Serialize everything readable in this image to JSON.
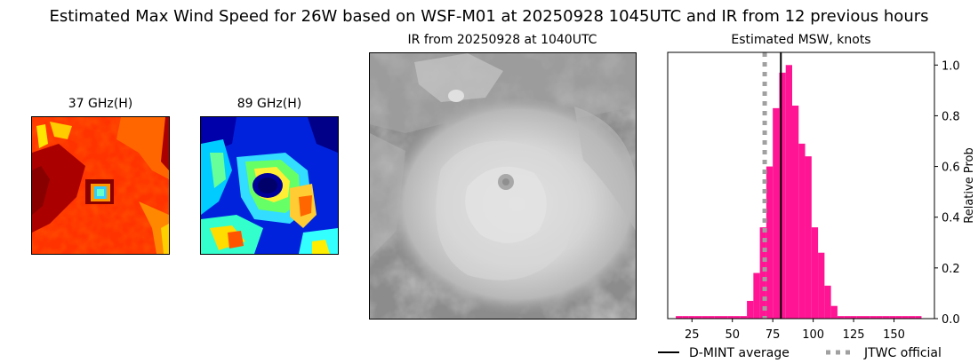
{
  "figure": {
    "title": "Estimated Max Wind Speed for 26W based on WSF-M01 at 20250928 1045UTC and IR from 12 previous hours"
  },
  "panels": {
    "mw37": {
      "title": "37 GHz(H)"
    },
    "mw89": {
      "title": "89 GHz(H)"
    },
    "ir": {
      "title": "IR from 20250928 at 1040UTC"
    }
  },
  "chart_data": {
    "type": "bar",
    "title": "Estimated MSW, knots",
    "ylabel": "Relative Prob",
    "xlim": [
      10,
      175
    ],
    "ylim": [
      0,
      1.05
    ],
    "xticks": [
      25,
      50,
      75,
      100,
      125,
      150
    ],
    "yticks": [
      0.0,
      0.2,
      0.4,
      0.6,
      0.8,
      1.0
    ],
    "bin_width": 4,
    "bins": [
      {
        "x": 17,
        "value": 0.01
      },
      {
        "x": 21,
        "value": 0.01
      },
      {
        "x": 25,
        "value": 0.01
      },
      {
        "x": 29,
        "value": 0.01
      },
      {
        "x": 33,
        "value": 0.01
      },
      {
        "x": 37,
        "value": 0.01
      },
      {
        "x": 41,
        "value": 0.01
      },
      {
        "x": 45,
        "value": 0.01
      },
      {
        "x": 49,
        "value": 0.01
      },
      {
        "x": 53,
        "value": 0.01
      },
      {
        "x": 57,
        "value": 0.01
      },
      {
        "x": 61,
        "value": 0.07
      },
      {
        "x": 65,
        "value": 0.18
      },
      {
        "x": 69,
        "value": 0.36
      },
      {
        "x": 73,
        "value": 0.6
      },
      {
        "x": 77,
        "value": 0.83
      },
      {
        "x": 81,
        "value": 0.97
      },
      {
        "x": 85,
        "value": 1.0
      },
      {
        "x": 89,
        "value": 0.84
      },
      {
        "x": 93,
        "value": 0.69
      },
      {
        "x": 97,
        "value": 0.64
      },
      {
        "x": 101,
        "value": 0.36
      },
      {
        "x": 105,
        "value": 0.26
      },
      {
        "x": 109,
        "value": 0.13
      },
      {
        "x": 113,
        "value": 0.05
      },
      {
        "x": 117,
        "value": 0.01
      },
      {
        "x": 121,
        "value": 0.01
      },
      {
        "x": 125,
        "value": 0.01
      },
      {
        "x": 129,
        "value": 0.01
      },
      {
        "x": 133,
        "value": 0.01
      },
      {
        "x": 137,
        "value": 0.01
      },
      {
        "x": 141,
        "value": 0.01
      },
      {
        "x": 145,
        "value": 0.01
      },
      {
        "x": 149,
        "value": 0.01
      },
      {
        "x": 153,
        "value": 0.01
      },
      {
        "x": 157,
        "value": 0.01
      },
      {
        "x": 161,
        "value": 0.01
      },
      {
        "x": 165,
        "value": 0.01
      }
    ],
    "bar_color": "#ff1493",
    "dmint_average": 80,
    "jtwc_official": 70,
    "legend": {
      "placement": "bottom",
      "items": [
        {
          "label": "D-MINT average",
          "style": "solid",
          "color": "#000000"
        },
        {
          "label": "JTWC official",
          "style": "dotted",
          "color": "#a0a0a0"
        }
      ]
    }
  }
}
